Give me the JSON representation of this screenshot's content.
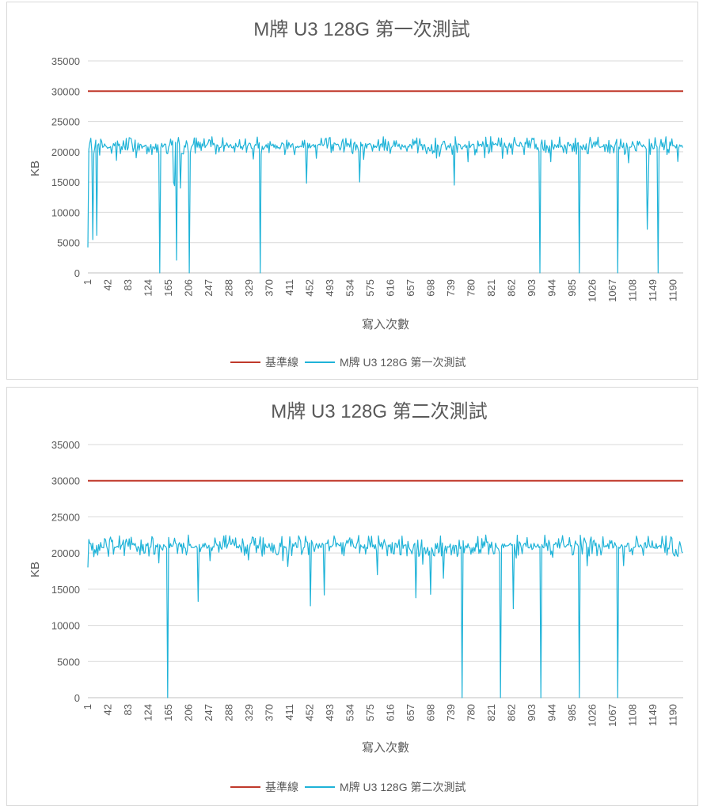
{
  "chart_data": [
    {
      "type": "line",
      "title": "M牌 U3 128G 第一次測試",
      "xlabel": "寫入次數",
      "ylabel": "KB",
      "ylim": [
        0,
        35000
      ],
      "yticks": [
        "35000",
        "30000",
        "25000",
        "20000",
        "15000",
        "10000",
        "5000",
        "0"
      ],
      "xticks": [
        "1",
        "42",
        "83",
        "124",
        "165",
        "206",
        "247",
        "288",
        "329",
        "370",
        "411",
        "452",
        "493",
        "534",
        "575",
        "616",
        "657",
        "698",
        "739",
        "780",
        "821",
        "862",
        "903",
        "944",
        "985",
        "1026",
        "1067",
        "1108",
        "1149",
        "1190"
      ],
      "x_range": [
        1,
        1210
      ],
      "grid": "horizontal",
      "legend_position": "bottom",
      "series": [
        {
          "name": "基準線",
          "color": "#c0392b",
          "constant": 30000
        },
        {
          "name": "M牌 U3 128G 第一次測試",
          "color": "#1fb3d8",
          "baseline_range": [
            19500,
            22500
          ],
          "dips": [
            [
              1,
              4200
            ],
            [
              12,
              5500
            ],
            [
              19,
              6200
            ],
            [
              100,
              19000
            ],
            [
              148,
              0
            ],
            [
              175,
              15000
            ],
            [
              178,
              14400
            ],
            [
              182,
              2100
            ],
            [
              190,
              14000
            ],
            [
              207,
              0
            ],
            [
              351,
              0
            ],
            [
              445,
              14800
            ],
            [
              553,
              15000
            ],
            [
              745,
              14500
            ],
            [
              920,
              0
            ],
            [
              1000,
              0
            ],
            [
              1077,
              0
            ],
            [
              1137,
              7200
            ],
            [
              1140,
              14000
            ],
            [
              1160,
              0
            ]
          ]
        }
      ]
    },
    {
      "type": "line",
      "title": "M牌 U3 128G 第二次測試",
      "xlabel": "寫入次數",
      "ylabel": "KB",
      "ylim": [
        0,
        35000
      ],
      "yticks": [
        "35000",
        "30000",
        "25000",
        "20000",
        "15000",
        "10000",
        "5000",
        "0"
      ],
      "xticks": [
        "1",
        "42",
        "83",
        "124",
        "165",
        "206",
        "247",
        "288",
        "329",
        "370",
        "411",
        "452",
        "493",
        "534",
        "575",
        "616",
        "657",
        "698",
        "739",
        "780",
        "821",
        "862",
        "903",
        "944",
        "985",
        "1026",
        "1067",
        "1108",
        "1149",
        "1190"
      ],
      "x_range": [
        1,
        1210
      ],
      "grid": "horizontal",
      "legend_position": "bottom",
      "series": [
        {
          "name": "基準線",
          "color": "#c0392b",
          "constant": 30000
        },
        {
          "name": "M牌 U3 128G 第二次測試",
          "color": "#1fb3d8",
          "baseline_range": [
            19500,
            22500
          ],
          "dips": [
            [
              1,
              18000
            ],
            [
              163,
              0
            ],
            [
              226,
              13300
            ],
            [
              453,
              12700
            ],
            [
              481,
              14200
            ],
            [
              590,
              17000
            ],
            [
              667,
              13800
            ],
            [
              697,
              14300
            ],
            [
              723,
              16500
            ],
            [
              761,
              0
            ],
            [
              840,
              0
            ],
            [
              866,
              12300
            ],
            [
              921,
              0
            ],
            [
              999,
              0
            ],
            [
              1077,
              0
            ]
          ]
        }
      ]
    }
  ]
}
